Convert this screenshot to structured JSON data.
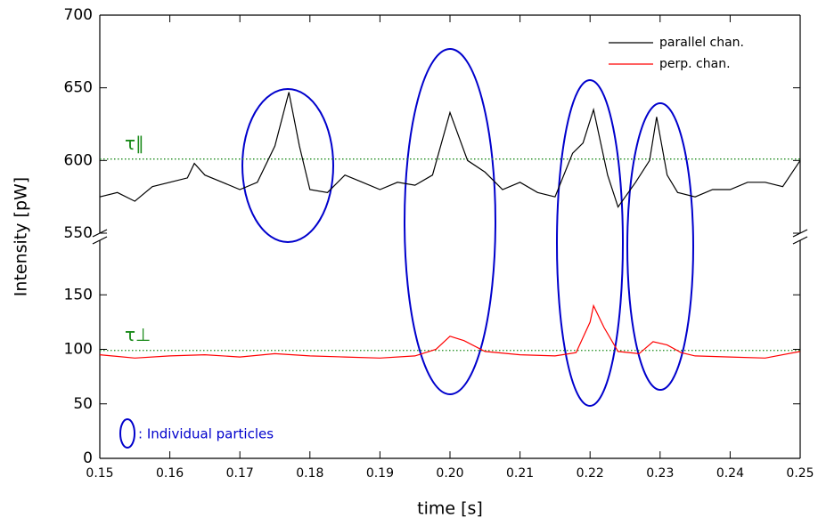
{
  "chart_data": {
    "type": "line",
    "xlabel": "time  [s]",
    "ylabel": "Intensity  [pW]",
    "xlim": [
      0.15,
      0.25
    ],
    "xticks": [
      0.15,
      0.16,
      0.17,
      0.18,
      0.19,
      {
        "value": 0.2,
        "label": "0.20"
      },
      0.21,
      0.22,
      0.23,
      0.24,
      0.25
    ],
    "ylim": [
      0,
      200
    ],
    "yticks": [
      0,
      50,
      100,
      150
    ],
    "ylim_upper": [
      550,
      700
    ],
    "yticks_upper": [
      550,
      600,
      650,
      700
    ],
    "legend": "upper right",
    "series": [
      {
        "name": "parallel chan.",
        "color": "#000000",
        "axis": "upper",
        "x": [
          0.15,
          0.1525,
          0.155,
          0.1575,
          0.16,
          0.1625,
          0.1635,
          0.165,
          0.1675,
          0.17,
          0.1725,
          0.175,
          0.177,
          0.1785,
          0.18,
          0.1825,
          0.185,
          0.1875,
          0.19,
          0.1925,
          0.195,
          0.1975,
          0.2,
          0.2025,
          0.205,
          0.2075,
          0.21,
          0.2125,
          0.215,
          0.2175,
          0.219,
          0.2205,
          0.2225,
          0.224,
          0.2265,
          0.2285,
          0.2295,
          0.231,
          0.2325,
          0.235,
          0.2375,
          0.24,
          0.2425,
          0.245,
          0.2475,
          0.25
        ],
        "values": [
          575,
          578,
          572,
          582,
          585,
          588,
          598,
          590,
          585,
          580,
          585,
          610,
          647,
          610,
          580,
          578,
          590,
          585,
          580,
          585,
          583,
          590,
          633,
          600,
          592,
          580,
          585,
          578,
          575,
          605,
          612,
          635,
          590,
          568,
          585,
          600,
          630,
          590,
          578,
          575,
          580,
          580,
          585,
          585,
          582,
          600
        ]
      },
      {
        "name": "perp. chan.",
        "color": "#ff0000",
        "axis": "lower",
        "x": [
          0.15,
          0.155,
          0.16,
          0.165,
          0.17,
          0.175,
          0.18,
          0.185,
          0.19,
          0.195,
          0.198,
          0.2,
          0.202,
          0.205,
          0.21,
          0.215,
          0.218,
          0.22,
          0.2205,
          0.222,
          0.224,
          0.227,
          0.229,
          0.231,
          0.233,
          0.235,
          0.24,
          0.245,
          0.25
        ],
        "values": [
          95,
          92,
          94,
          95,
          93,
          96,
          94,
          93,
          92,
          94,
          100,
          112,
          108,
          98,
          95,
          94,
          97,
          125,
          140,
          120,
          98,
          96,
          107,
          104,
          97,
          94,
          93,
          92,
          98
        ]
      }
    ],
    "thresholds": [
      {
        "label": "τ∥",
        "value": 601,
        "axis": "upper",
        "color": "#1a8a1a"
      },
      {
        "label": "τ⊥",
        "value": 99,
        "axis": "lower",
        "color": "#1a8a1a"
      }
    ],
    "annotation": ": Individual particles"
  }
}
